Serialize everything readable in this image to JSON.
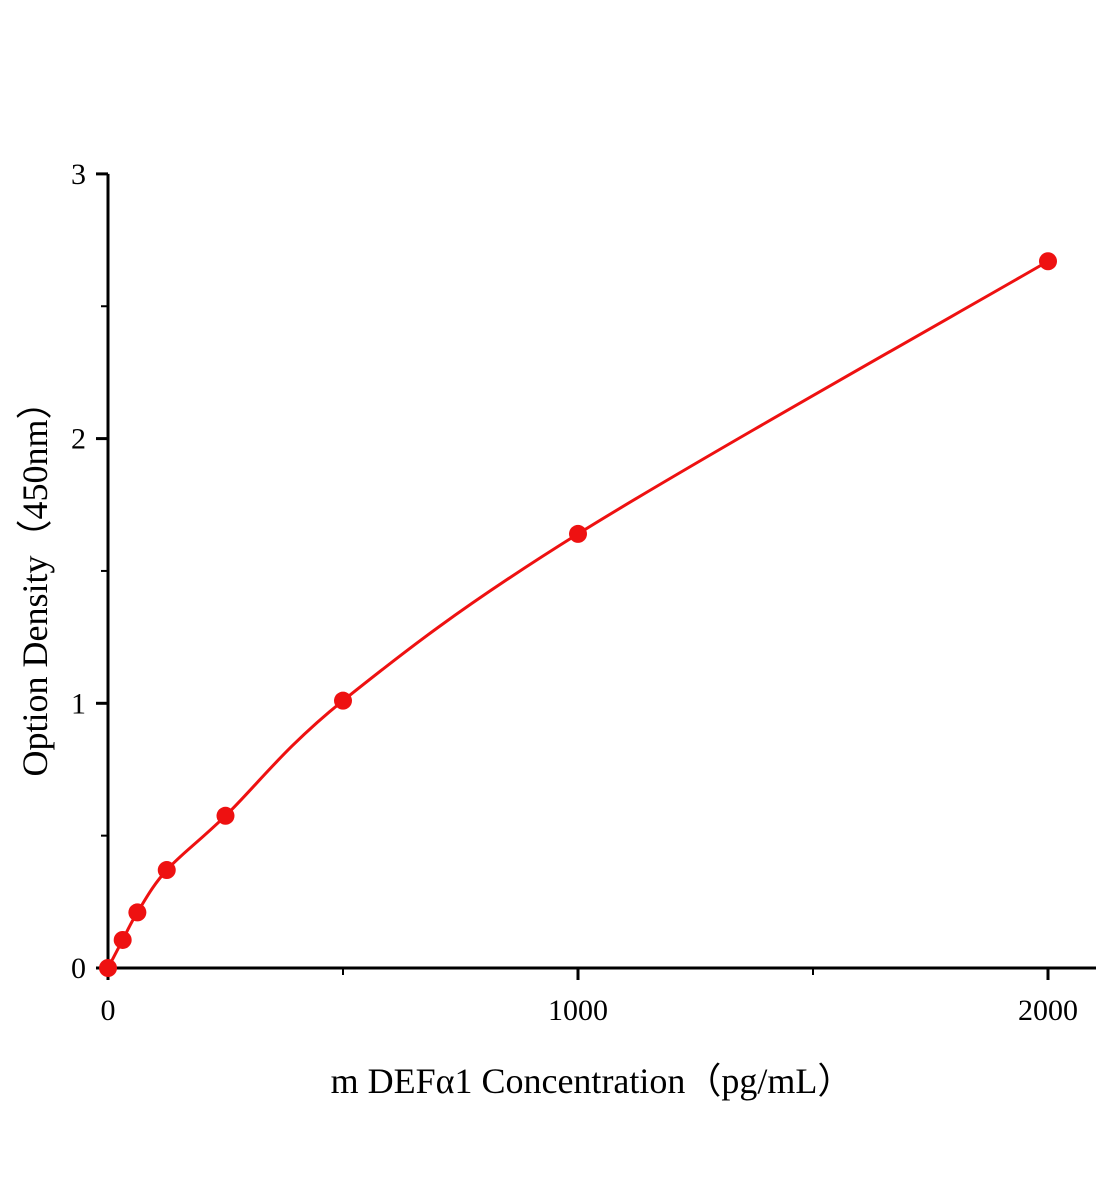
{
  "chart_data": {
    "type": "scatter",
    "title": "",
    "xlabel": "m DEFα1 Concentration（pg/mL）",
    "ylabel": "Option Density（450nm）",
    "xlim": [
      0,
      2100
    ],
    "ylim": [
      0,
      3
    ],
    "x_ticks": [
      "0",
      "1000",
      "2000"
    ],
    "x_minor_ticks": [
      500,
      1500
    ],
    "y_ticks": [
      "0",
      "1",
      "2",
      "3"
    ],
    "y_minor_ticks": [
      0.5,
      1.5,
      2.5
    ],
    "grid": false,
    "legend": "none",
    "fit_line": true,
    "color": "#ee1111",
    "series": [
      {
        "x": [
          0,
          31.25,
          62.5,
          125,
          250,
          500,
          1000,
          2000
        ],
        "y": [
          0.0,
          0.106,
          0.21,
          0.37,
          0.575,
          1.01,
          1.64,
          2.67
        ]
      }
    ]
  }
}
